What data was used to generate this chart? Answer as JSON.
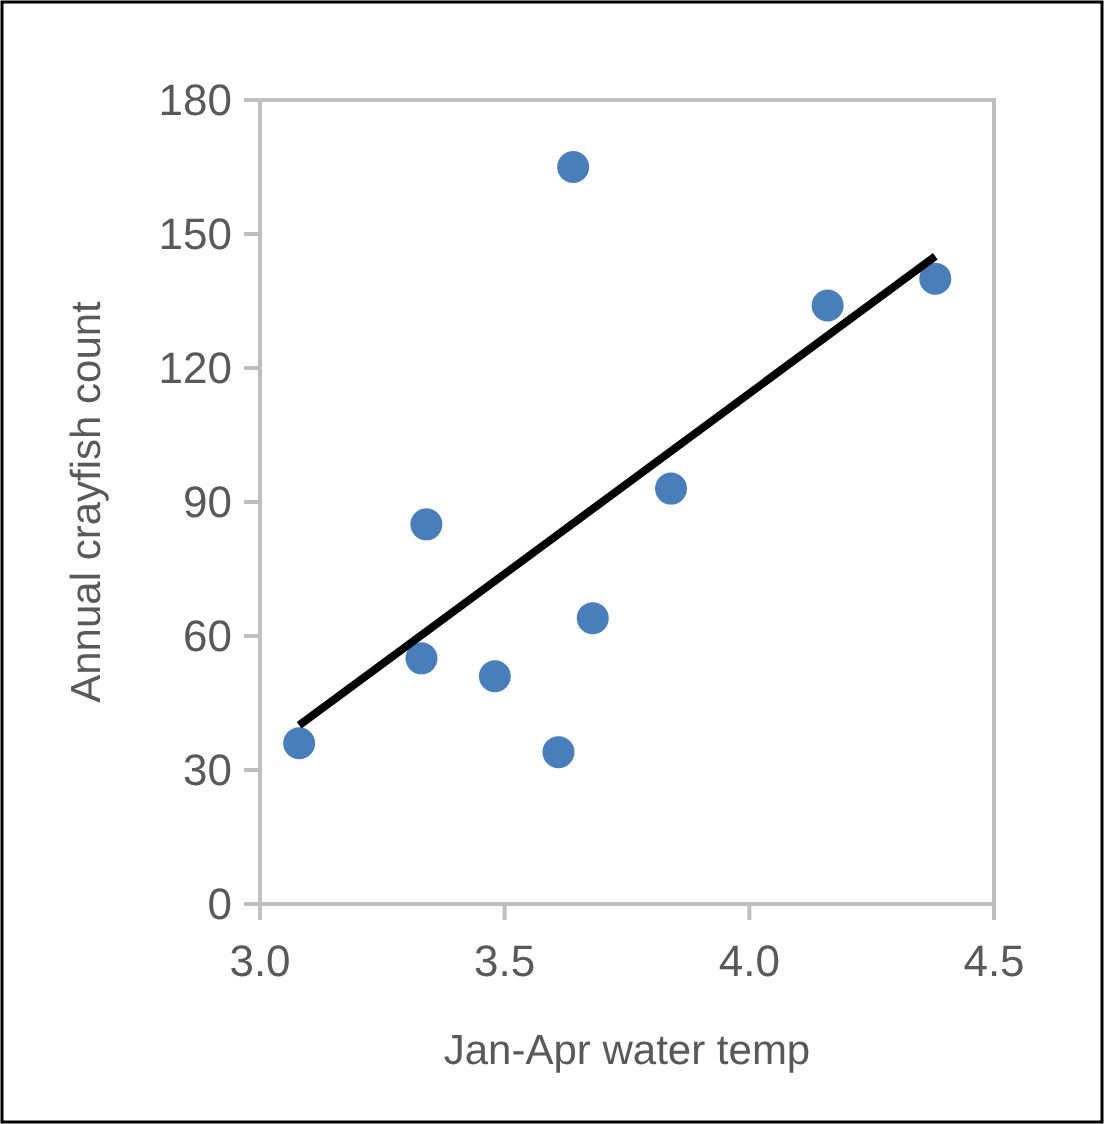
{
  "chart_data": {
    "type": "scatter",
    "xlabel": "Jan-Apr water temp",
    "ylabel": "Annual crayfish count",
    "xlim": [
      3.0,
      4.5
    ],
    "xticks": [
      {
        "value": 3.0,
        "label": "3.0"
      },
      {
        "value": 3.5,
        "label": "3.5"
      },
      {
        "value": 4.0,
        "label": "4.0"
      },
      {
        "value": 4.5,
        "label": "4.5"
      }
    ],
    "ylim": [
      0,
      180
    ],
    "yticks": [
      0,
      30,
      60,
      90,
      120,
      150,
      180
    ],
    "grid": false,
    "marker": "circle",
    "series": [
      {
        "color": "#4a7ebb",
        "x": [
          3.08,
          3.33,
          3.34,
          3.48,
          3.61,
          3.64,
          3.68,
          3.84,
          4.16,
          4.38
        ],
        "values": [
          36,
          55,
          85,
          51,
          34,
          165,
          64,
          93,
          134,
          140
        ]
      },
      {
        "type": "line",
        "color": "#000000",
        "line_style": "solid",
        "marker": "none",
        "x": [
          3.08,
          4.38
        ],
        "values": [
          40,
          145
        ]
      }
    ]
  }
}
